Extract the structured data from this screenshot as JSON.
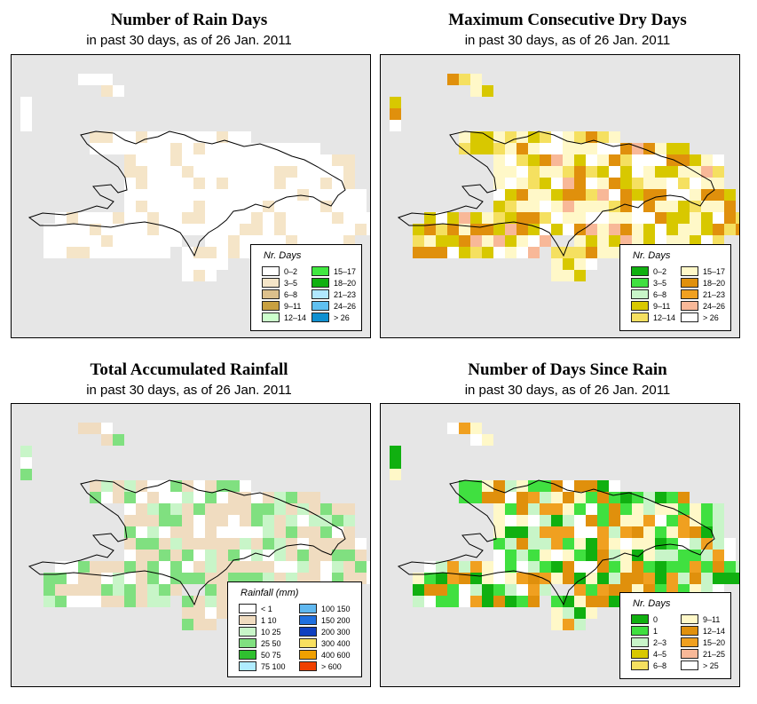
{
  "panels": [
    {
      "title": "Number of Rain Days",
      "subtitle": "in past 30 days, as of  26 Jan. 2011",
      "legend_title": "Nr. Days",
      "legend": [
        {
          "label": "0–2",
          "color": "#ffffff"
        },
        {
          "label": "3–5",
          "color": "#f5e5c8"
        },
        {
          "label": "6–8",
          "color": "#dcc08c"
        },
        {
          "label": "9–11",
          "color": "#c8a040"
        },
        {
          "label": "12–14",
          "color": "#ccffcc"
        },
        {
          "label": "15–17",
          "color": "#40e840"
        },
        {
          "label": "18–20",
          "color": "#10b010"
        },
        {
          "label": "21–23",
          "color": "#b0e8ff"
        },
        {
          "label": "24–26",
          "color": "#60c0f0"
        },
        {
          "label": "> 26",
          "color": "#1090d0"
        }
      ]
    },
    {
      "title": "Maximum Consecutive Dry Days",
      "subtitle": "in past 30 days, as of  26 Jan. 2011",
      "legend_title": "Nr. Days",
      "legend": [
        {
          "label": "0–2",
          "color": "#10b010"
        },
        {
          "label": "3–5",
          "color": "#40e040"
        },
        {
          "label": "6–8",
          "color": "#c8f5c8"
        },
        {
          "label": "9–11",
          "color": "#d8c800"
        },
        {
          "label": "12–14",
          "color": "#f5e060"
        },
        {
          "label": "15–17",
          "color": "#fff8c8"
        },
        {
          "label": "18–20",
          "color": "#e0900c"
        },
        {
          "label": "21–23",
          "color": "#f0a020"
        },
        {
          "label": "24–26",
          "color": "#f8b898"
        },
        {
          "label": "> 26",
          "color": "#ffffff"
        }
      ]
    },
    {
      "title": "Total Accumulated Rainfall",
      "subtitle": "in past 30 days, as of  26 Jan. 2011",
      "legend_title": "Rainfall (mm)",
      "legend": [
        {
          "label": "< 1",
          "color": "#ffffff"
        },
        {
          "label": "1    10",
          "color": "#f0dcc0"
        },
        {
          "label": "10    25",
          "color": "#c8f5c8"
        },
        {
          "label": "25    50",
          "color": "#80e080"
        },
        {
          "label": "50    75",
          "color": "#30c030"
        },
        {
          "label": "75  100",
          "color": "#b0ecff"
        },
        {
          "label": "100  150",
          "color": "#60b8f0"
        },
        {
          "label": "150  200",
          "color": "#2070e0"
        },
        {
          "label": "200  300",
          "color": "#1040c0"
        },
        {
          "label": "300  400",
          "color": "#f8e060"
        },
        {
          "label": "400  600",
          "color": "#f0a000"
        },
        {
          "label": "> 600",
          "color": "#f04000"
        }
      ]
    },
    {
      "title": "Number of Days Since Rain",
      "subtitle": "in past 30 days, as of  26 Jan. 2011",
      "legend_title": "Nr. Days",
      "legend": [
        {
          "label": "0",
          "color": "#10b010"
        },
        {
          "label": "1",
          "color": "#40e040"
        },
        {
          "label": "2–3",
          "color": "#c8f5c8"
        },
        {
          "label": "4–5",
          "color": "#d8c800"
        },
        {
          "label": "6–8",
          "color": "#f5e060"
        },
        {
          "label": "9–11",
          "color": "#fff8c8"
        },
        {
          "label": "12–14",
          "color": "#e0900c"
        },
        {
          "label": "15–20",
          "color": "#f0a020"
        },
        {
          "label": "21–25",
          "color": "#f8b898"
        },
        {
          "label": "> 25",
          "color": "#ffffff"
        }
      ]
    }
  ]
}
